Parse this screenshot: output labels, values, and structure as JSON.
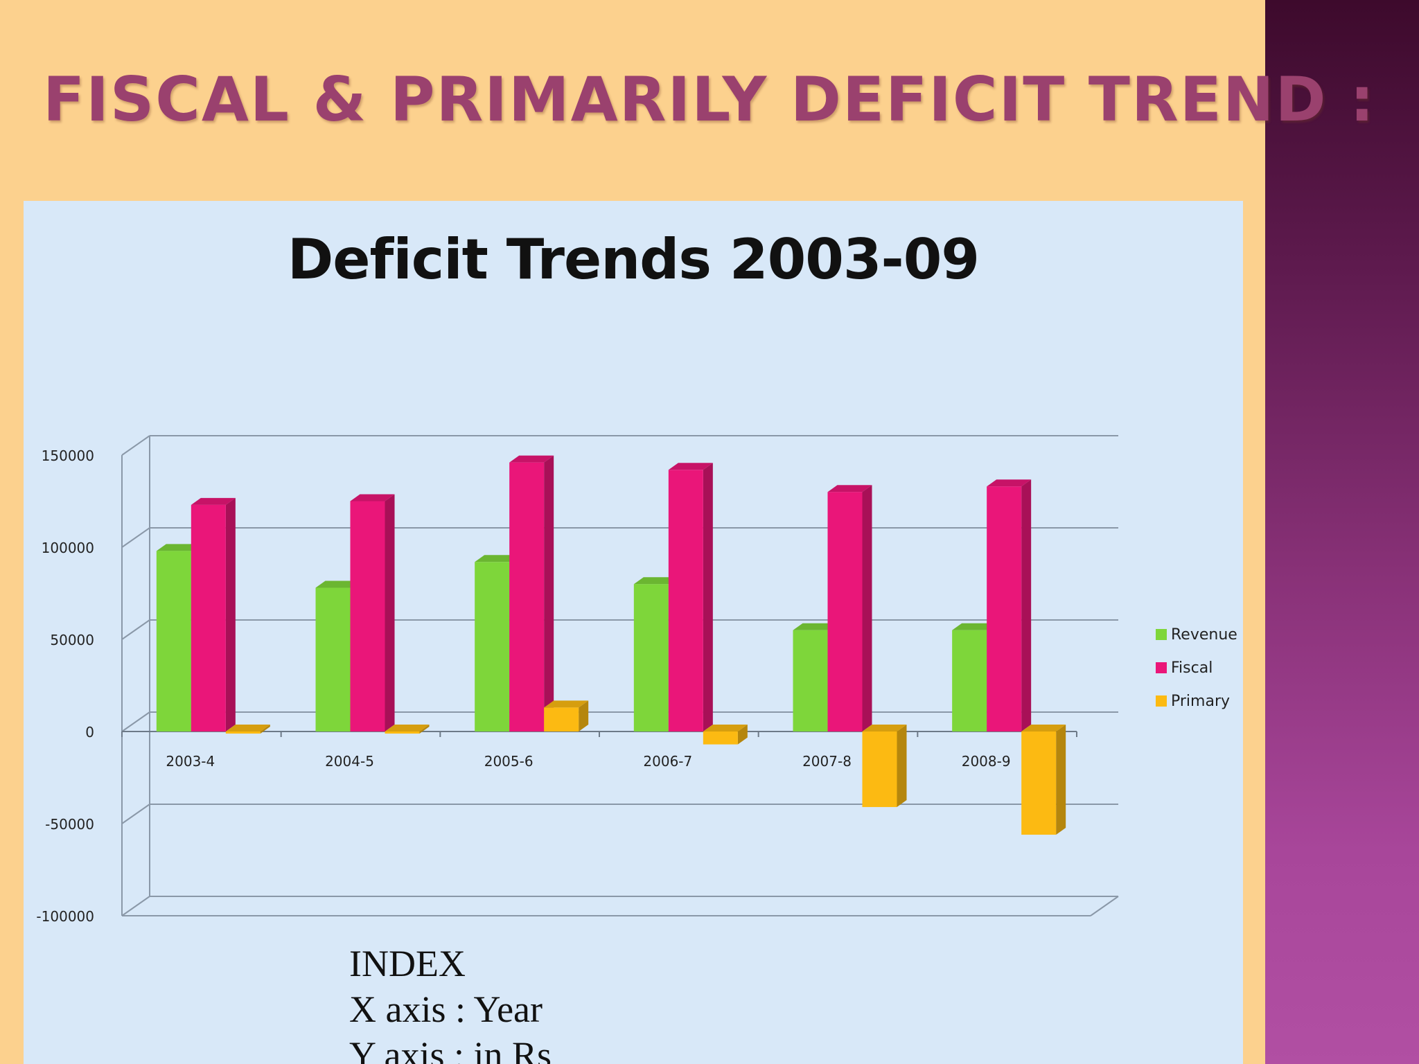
{
  "slide": {
    "title": "FISCAL & PRIMARILY DEFICIT TREND :"
  },
  "colors": {
    "background": "#fcd18e",
    "title": "#9a416e",
    "side_band": "#7a2a68",
    "chart_panel": "#d8e8f8",
    "revenue": "#7ed63a",
    "fiscal": "#ea1679",
    "primary": "#fcba12"
  },
  "chart_data": {
    "type": "bar",
    "style": "3d-clustered-column",
    "title": "Deficit Trends 2003-09",
    "categories": [
      "2003-4",
      "2004-5",
      "2005-6",
      "2006-7",
      "2007-8",
      "2008-9"
    ],
    "series": [
      {
        "name": "Revenue",
        "color": "#7ed63a",
        "values": [
          98000,
          78000,
          92000,
          80000,
          55000,
          55000
        ]
      },
      {
        "name": "Fiscal",
        "color": "#ea1679",
        "values": [
          123000,
          125000,
          146000,
          142000,
          130000,
          133000
        ]
      },
      {
        "name": "Primary",
        "color": "#fcba12",
        "values": [
          -1000,
          -1000,
          13000,
          -7000,
          -41000,
          -56000
        ]
      }
    ],
    "ylim": [
      -100000,
      150000
    ],
    "yticks": [
      150000,
      100000,
      50000,
      0,
      -50000,
      -100000
    ],
    "ytick_labels": [
      "150000",
      "100000",
      "50000",
      "0",
      "-50000",
      "-100000"
    ],
    "grid": true,
    "legend_position": "right"
  },
  "index_note": {
    "heading": "INDEX",
    "x_axis": "X axis : Year",
    "y_axis": "Y axis : in Rs"
  }
}
